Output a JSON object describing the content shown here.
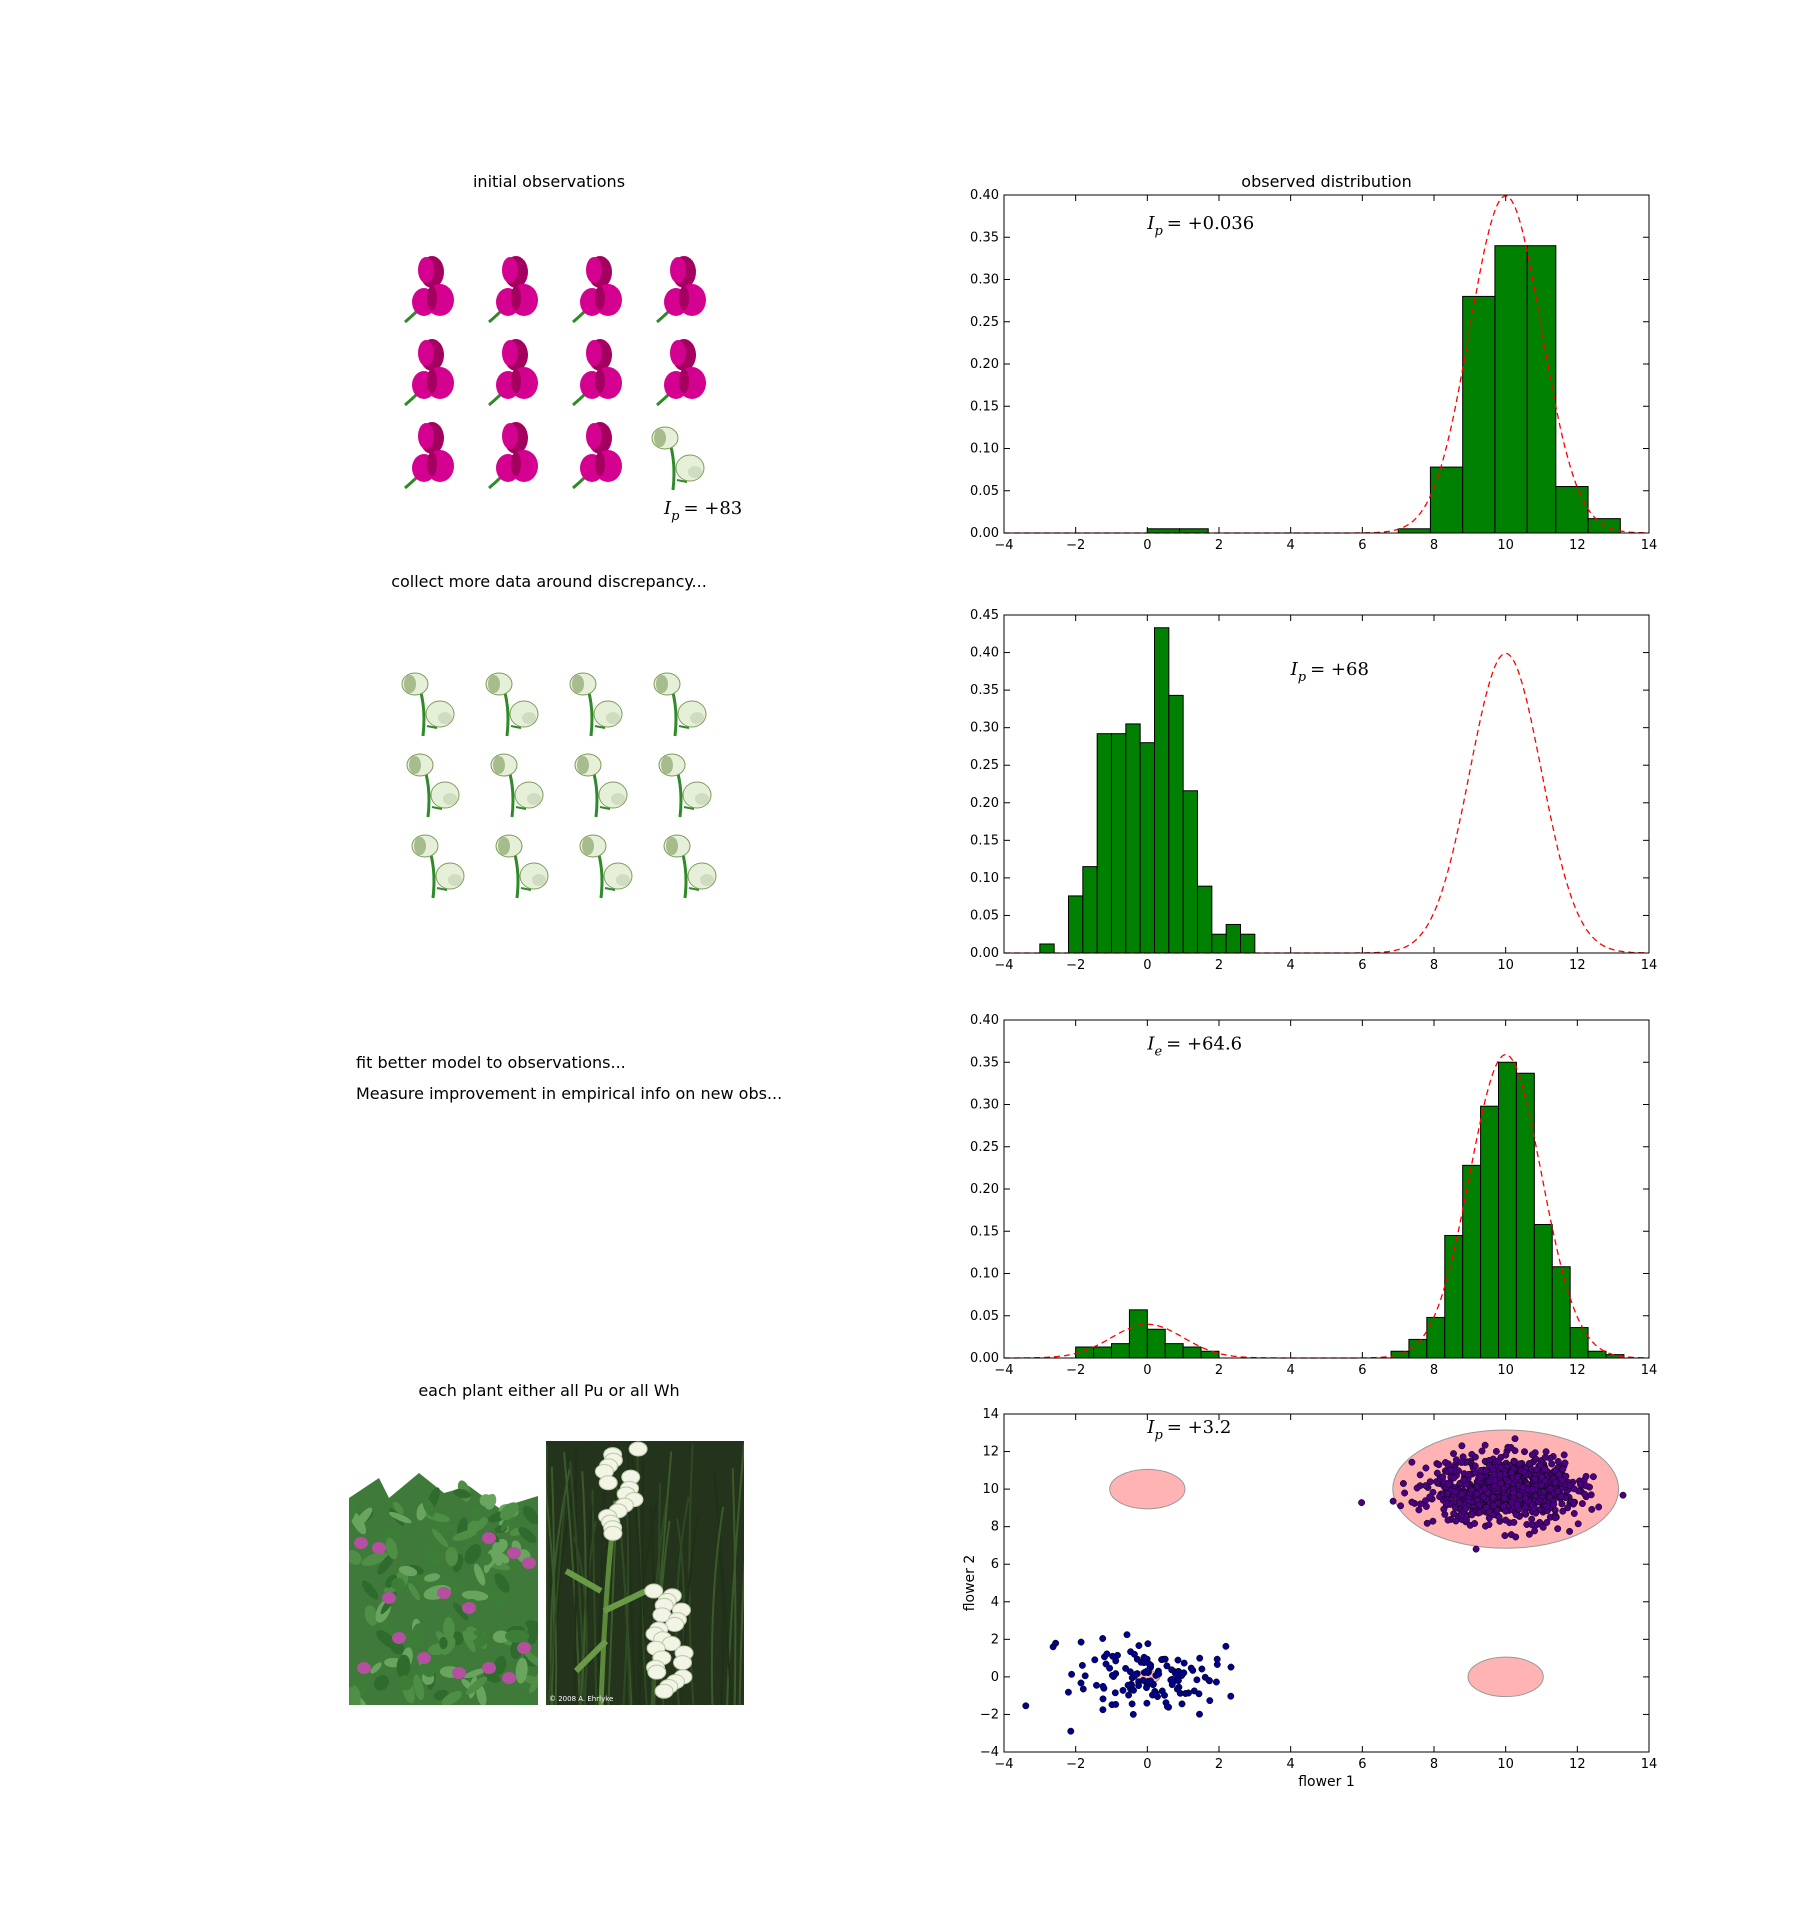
{
  "left_panels": [
    {
      "caption": "initial observations",
      "annotation": {
        "prefix": "I",
        "sub": "p",
        "value": "= +83"
      }
    },
    {
      "caption": "collect more data around discrepancy..."
    },
    {
      "caption_lines": [
        "fit better model to observations...",
        "Measure improvement in empirical info on new obs..."
      ]
    },
    {
      "caption": "each plant either all Pu or all Wh",
      "photo_credit": "© 2008 A. Ehrlyke"
    }
  ],
  "colors": {
    "bar_fill": "#008000",
    "model_line": "#ff0000",
    "flower_purple": "#d4008f",
    "flower_dark": "#a4005f",
    "flower_white": "#e6f0d8",
    "flower_white_dark": "#7d9a5a",
    "stem": "#2f8a2a",
    "ellipse_fill": "#ffb3b3",
    "point_blue": "#00008b",
    "point_purple": "#4b0082"
  },
  "chart_data": [
    {
      "type": "bar",
      "title": "observed distribution",
      "annotation": {
        "prefix": "I",
        "sub": "p",
        "value": "= +0.036"
      },
      "xlim": [
        -4,
        14
      ],
      "ylim": [
        0,
        0.4
      ],
      "xticks": [
        "−4",
        "−2",
        "0",
        "2",
        "4",
        "6",
        "8",
        "10",
        "12",
        "14"
      ],
      "yticks": [
        "0.00",
        "0.05",
        "0.10",
        "0.15",
        "0.20",
        "0.25",
        "0.30",
        "0.35",
        "0.40"
      ],
      "bins": [
        [
          0,
          0.9,
          0.005
        ],
        [
          0.9,
          1.7,
          0.005
        ],
        [
          7,
          7.9,
          0.005
        ],
        [
          7.9,
          8.8,
          0.078
        ],
        [
          8.8,
          9.7,
          0.28
        ],
        [
          9.7,
          10.6,
          0.34
        ],
        [
          10.6,
          11.4,
          0.34
        ],
        [
          11.4,
          12.3,
          0.055
        ],
        [
          12.3,
          13.2,
          0.017
        ]
      ],
      "model": {
        "components": [
          {
            "mean": 10,
            "sd": 1,
            "weight": 1
          }
        ]
      }
    },
    {
      "type": "bar",
      "annotation": {
        "prefix": "I",
        "sub": "p",
        "value": "= +68"
      },
      "xlim": [
        -4,
        14
      ],
      "ylim": [
        0,
        0.45
      ],
      "xticks": [
        "−4",
        "−2",
        "0",
        "2",
        "4",
        "6",
        "8",
        "10",
        "12",
        "14"
      ],
      "yticks": [
        "0.00",
        "0.05",
        "0.10",
        "0.15",
        "0.20",
        "0.25",
        "0.30",
        "0.35",
        "0.40",
        "0.45"
      ],
      "bins": [
        [
          -3.0,
          -2.6,
          0.012
        ],
        [
          -2.2,
          -1.8,
          0.076
        ],
        [
          -1.8,
          -1.4,
          0.115
        ],
        [
          -1.4,
          -1.0,
          0.292
        ],
        [
          -1.0,
          -0.6,
          0.292
        ],
        [
          -0.6,
          -0.2,
          0.305
        ],
        [
          -0.2,
          0.2,
          0.28
        ],
        [
          0.2,
          0.6,
          0.433
        ],
        [
          0.6,
          1.0,
          0.343
        ],
        [
          1.0,
          1.4,
          0.216
        ],
        [
          1.4,
          1.8,
          0.089
        ],
        [
          1.8,
          2.2,
          0.025
        ],
        [
          2.2,
          2.6,
          0.038
        ],
        [
          2.6,
          3.0,
          0.025
        ]
      ],
      "model": {
        "components": [
          {
            "mean": 10,
            "sd": 1,
            "weight": 1
          }
        ]
      }
    },
    {
      "type": "bar",
      "annotation": {
        "prefix": "I",
        "sub": "e",
        "value": "= +64.6"
      },
      "xlim": [
        -4,
        14
      ],
      "ylim": [
        0,
        0.4
      ],
      "xticks": [
        "−4",
        "−2",
        "0",
        "2",
        "4",
        "6",
        "8",
        "10",
        "12",
        "14"
      ],
      "yticks": [
        "0.00",
        "0.05",
        "0.10",
        "0.15",
        "0.20",
        "0.25",
        "0.30",
        "0.35",
        "0.40"
      ],
      "bins": [
        [
          -2.0,
          -1.5,
          0.013
        ],
        [
          -1.5,
          -1.0,
          0.013
        ],
        [
          -1.0,
          -0.5,
          0.017
        ],
        [
          -0.5,
          0.0,
          0.057
        ],
        [
          0.0,
          0.5,
          0.034
        ],
        [
          0.5,
          1.0,
          0.017
        ],
        [
          1.0,
          1.5,
          0.013
        ],
        [
          1.5,
          2.0,
          0.008
        ],
        [
          6.8,
          7.3,
          0.008
        ],
        [
          7.3,
          7.8,
          0.022
        ],
        [
          7.8,
          8.3,
          0.048
        ],
        [
          8.3,
          8.8,
          0.145
        ],
        [
          8.8,
          9.3,
          0.228
        ],
        [
          9.3,
          9.8,
          0.298
        ],
        [
          9.8,
          10.3,
          0.35
        ],
        [
          10.3,
          10.8,
          0.337
        ],
        [
          10.8,
          11.3,
          0.158
        ],
        [
          11.3,
          11.8,
          0.108
        ],
        [
          11.8,
          12.3,
          0.036
        ],
        [
          12.3,
          12.8,
          0.008
        ],
        [
          12.8,
          13.3,
          0.004
        ]
      ],
      "model": {
        "components": [
          {
            "mean": 0,
            "sd": 1,
            "weight": 0.1
          },
          {
            "mean": 10,
            "sd": 1,
            "weight": 0.9
          }
        ]
      }
    },
    {
      "type": "scatter",
      "annotation": {
        "prefix": "I",
        "sub": "p",
        "value": "= +3.2"
      },
      "xlabel": "flower 1",
      "ylabel": "flower 2",
      "xlim": [
        -4,
        14
      ],
      "ylim": [
        -4,
        14
      ],
      "xticks": [
        "−4",
        "−2",
        "0",
        "2",
        "4",
        "6",
        "8",
        "10",
        "12",
        "14"
      ],
      "yticks": [
        "−4",
        "−2",
        "0",
        "2",
        "4",
        "6",
        "8",
        "10",
        "12",
        "14"
      ],
      "ellipses": [
        {
          "cx": 0,
          "cy": 10,
          "rx": 1.05,
          "ry": 1.05
        },
        {
          "cx": 10,
          "cy": 0,
          "rx": 1.05,
          "ry": 1.05
        },
        {
          "cx": 10,
          "cy": 10,
          "rx": 3.15,
          "ry": 3.15
        },
        {
          "cx": 0,
          "cy": 0,
          "rx": 0.35,
          "ry": 0.35
        }
      ],
      "clusters": [
        {
          "name": "",
          "center": [
            0,
            0
          ],
          "spread": [
            1.0,
            1.0
          ],
          "count": 130,
          "color_key": "point_blue"
        },
        {
          "name": "",
          "center": [
            10,
            10
          ],
          "spread": [
            1.0,
            0.85
          ],
          "count": 900,
          "color_key": "point_purple"
        }
      ]
    }
  ]
}
